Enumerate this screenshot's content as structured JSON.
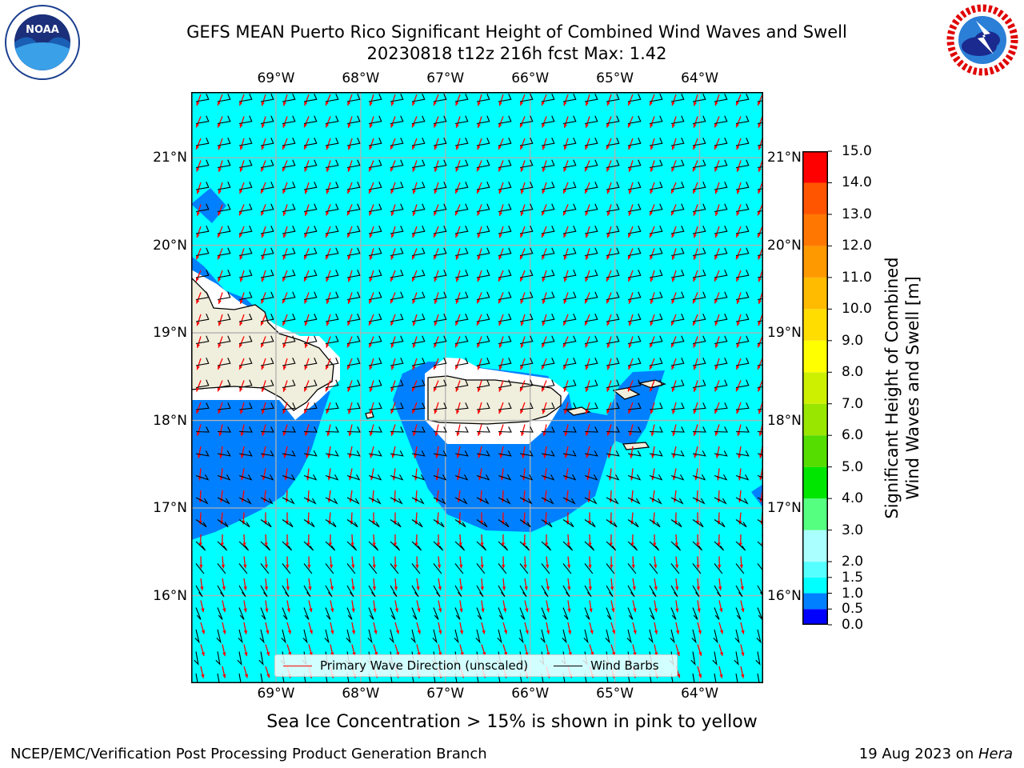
{
  "header": {
    "title_line1": "GEFS MEAN Puerto Rico Significant Height of Combined Wind Waves and Swell",
    "title_line2": "20230818 t12z 216h fcst   Max: 1.42"
  },
  "logos": {
    "left": "noara-logo",
    "left_text": "NOAA",
    "right": "nws-logo",
    "right_text": "NATIONAL WEATHER SERVICE"
  },
  "map": {
    "lon_ticks": [
      "69°W",
      "68°W",
      "67°W",
      "66°W",
      "65°W",
      "64°W"
    ],
    "lat_ticks": [
      "21°N",
      "20°N",
      "19°N",
      "18°N",
      "17°N",
      "16°N"
    ],
    "lon_range": [
      -70,
      -63.25
    ],
    "lat_range": [
      15.0,
      21.75
    ],
    "colors": {
      "ocean_1_1_5": "#00ffff",
      "ocean_0_5_1": "#0080ff",
      "land": "#f0eedc",
      "grid": "#b0b0b0",
      "wave_arrow": "#ff0000",
      "barb": "#000000"
    }
  },
  "colorbar": {
    "levels": [
      "0.0",
      "0.5",
      "1.0",
      "1.5",
      "2.0",
      "3.0",
      "4.0",
      "5.0",
      "6.0",
      "7.0",
      "8.0",
      "9.0",
      "10.0",
      "11.0",
      "12.0",
      "13.0",
      "14.0",
      "15.0"
    ],
    "colors": [
      "#0000ff",
      "#0080ff",
      "#00ffff",
      "#55ffff",
      "#aaffff",
      "#55ff80",
      "#00e600",
      "#55dd00",
      "#99e600",
      "#ccf000",
      "#ffff00",
      "#ffdd00",
      "#ffbb00",
      "#ff9900",
      "#ff7700",
      "#ff5500",
      "#ff0000"
    ],
    "label_line1": "Significant Height of Combined",
    "label_line2": "Wind Waves and Swell [m]"
  },
  "legend": {
    "wave_label": "Primary Wave Direction (unscaled)",
    "barb_label": "Wind Barbs"
  },
  "subtitle": "Sea Ice Concentration > 15% is shown in pink to yellow",
  "footer": {
    "left": "NCEP/EMC/Verification Post Processing Product Generation Branch",
    "right_prefix": "19 Aug 2023 on ",
    "right_host": "Hera"
  }
}
